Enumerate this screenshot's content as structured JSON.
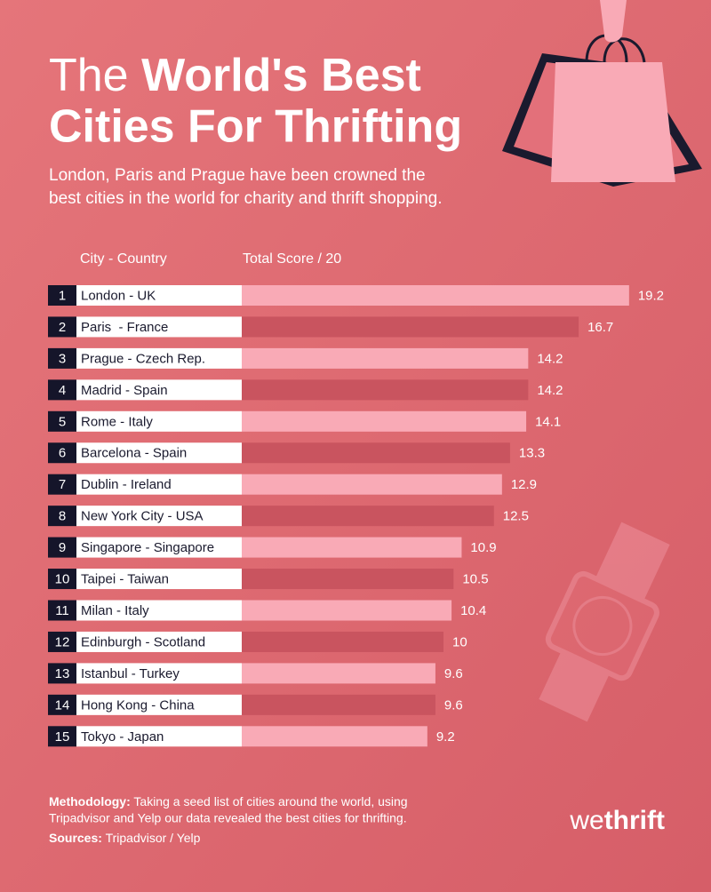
{
  "chart_data": {
    "type": "bar",
    "orientation": "horizontal",
    "title_light": "The",
    "title_bold_line1": "World's Best",
    "title_bold_line2": "Cities For Thrifting",
    "subtitle_line1": "London, Paris and Prague have been crowned the",
    "subtitle_line2": "best cities in the world for charity and thrift shopping.",
    "column_city": "City - Country",
    "column_score": "Total Score / 20",
    "ranks": [
      1,
      2,
      3,
      4,
      5,
      6,
      7,
      8,
      9,
      10,
      11,
      12,
      13,
      14,
      15
    ],
    "categories": [
      "London - UK",
      "Paris  - France",
      "Prague - Czech Rep.",
      "Madrid - Spain",
      "Rome - Italy",
      "Barcelona - Spain",
      "Dublin - Ireland",
      "New York City - USA",
      "Singapore - Singapore",
      "Taipei - Taiwan",
      "Milan - Italy",
      "Edinburgh - Scotland",
      "Istanbul - Turkey",
      "Hong Kong - China",
      "Tokyo - Japan"
    ],
    "values": [
      19.2,
      16.7,
      14.2,
      14.2,
      14.1,
      13.3,
      12.9,
      12.5,
      10.9,
      10.5,
      10.4,
      10,
      9.6,
      9.6,
      9.2
    ],
    "colors": [
      "#f9aab6",
      "#c9545f"
    ],
    "methodology_label": "Methodology:",
    "methodology_line1": "Taking a seed list of cities around the world, using",
    "methodology_line2": "Tripadvisor and Yelp our data revealed the best cities for thrifting.",
    "sources_label": "Sources:",
    "sources": "Tripadvisor / Yelp",
    "brand_light": "we",
    "brand_bold": "thrift"
  }
}
